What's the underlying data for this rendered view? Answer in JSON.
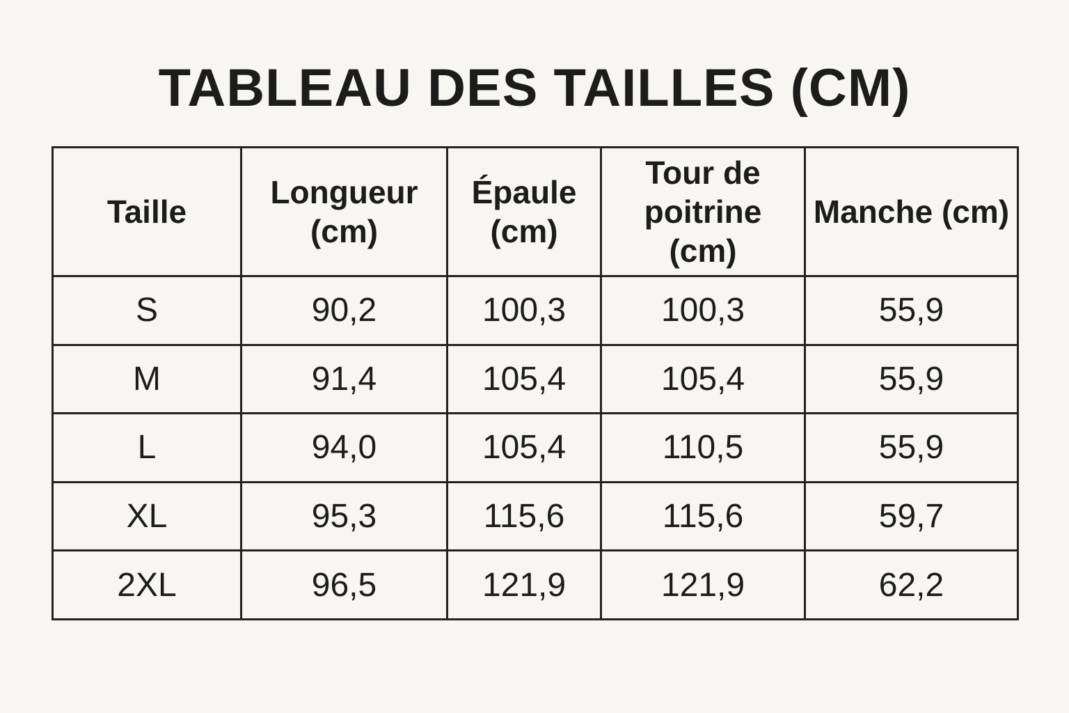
{
  "title": "TABLEAU DES TAILLES (CM)",
  "table": {
    "headers": [
      "Taille",
      "Longueur (cm)",
      "Épaule (cm)",
      "Tour de poitrine (cm)",
      "Manche (cm)"
    ],
    "rows": [
      [
        "S",
        "90,2",
        "100,3",
        "100,3",
        "55,9"
      ],
      [
        "M",
        "91,4",
        "105,4",
        "105,4",
        "55,9"
      ],
      [
        "L",
        "94,0",
        "105,4",
        "110,5",
        "55,9"
      ],
      [
        "XL",
        "95,3",
        "115,6",
        "115,6",
        "59,7"
      ],
      [
        "2XL",
        "96,5",
        "121,9",
        "121,9",
        "62,2"
      ]
    ]
  }
}
